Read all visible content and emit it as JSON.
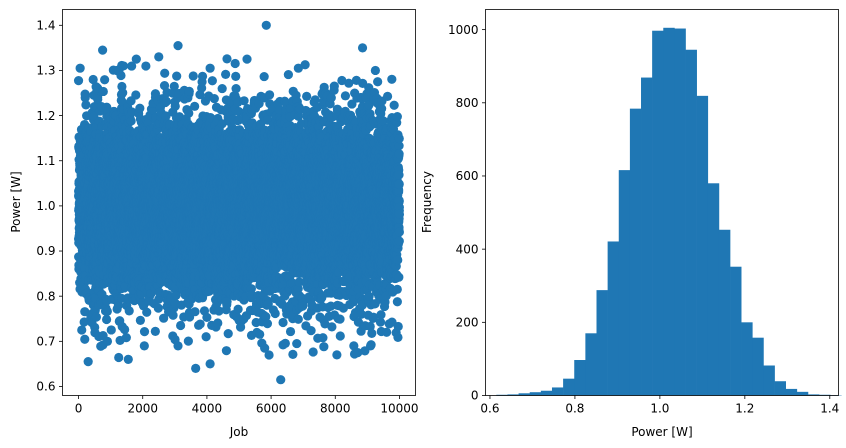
{
  "chart_data": [
    {
      "type": "scatter",
      "xlabel": "Job",
      "ylabel": "Power [W]",
      "xlim": [
        -500,
        10500
      ],
      "ylim": [
        0.58,
        1.435
      ],
      "xticks": [
        "0",
        "2000",
        "4000",
        "6000",
        "8000",
        "10000"
      ],
      "yticks": [
        "0.6",
        "0.7",
        "0.8",
        "0.9",
        "1.0",
        "1.1",
        "1.2",
        "1.3",
        "1.4"
      ],
      "grid": false,
      "color": "#1f77b4",
      "n_points": 10000,
      "distribution": {
        "mean": 1.0,
        "std": 0.1
      },
      "outliers": [
        {
          "x": 5850,
          "y": 1.4
        },
        {
          "x": 3100,
          "y": 1.355
        },
        {
          "x": 8850,
          "y": 1.35
        },
        {
          "x": 750,
          "y": 1.345
        },
        {
          "x": 5250,
          "y": 1.325
        },
        {
          "x": 1800,
          "y": 1.325
        },
        {
          "x": 2500,
          "y": 1.33
        },
        {
          "x": 50,
          "y": 1.305
        },
        {
          "x": 6850,
          "y": 1.305
        },
        {
          "x": 4100,
          "y": 1.305
        },
        {
          "x": 9250,
          "y": 1.3
        },
        {
          "x": 1400,
          "y": 1.31
        },
        {
          "x": 300,
          "y": 0.655
        },
        {
          "x": 1550,
          "y": 0.66
        },
        {
          "x": 6300,
          "y": 0.615
        },
        {
          "x": 3650,
          "y": 0.64
        },
        {
          "x": 4100,
          "y": 0.65
        },
        {
          "x": 8050,
          "y": 0.67
        },
        {
          "x": 8700,
          "y": 0.675
        },
        {
          "x": 8600,
          "y": 0.672
        },
        {
          "x": 3100,
          "y": 0.69
        },
        {
          "x": 5800,
          "y": 0.685
        },
        {
          "x": 9100,
          "y": 0.69
        },
        {
          "x": 2050,
          "y": 0.69
        },
        {
          "x": 100,
          "y": 0.725
        },
        {
          "x": 900,
          "y": 0.7
        },
        {
          "x": 9600,
          "y": 0.72
        },
        {
          "x": 6800,
          "y": 0.695
        }
      ]
    },
    {
      "type": "bar",
      "xlabel": "Power [W]",
      "ylabel": "Frequency",
      "xlim": [
        0.5895,
        1.4205
      ],
      "ylim": [
        0,
        1055
      ],
      "xticks": [
        "0.6",
        "0.8",
        "1.0",
        "1.2",
        "1.4"
      ],
      "yticks": [
        "0",
        "200",
        "400",
        "600",
        "800",
        "1000"
      ],
      "grid": false,
      "color": "#1f77b4",
      "bin_start": 0.615,
      "bin_width": 0.0262,
      "values": [
        2,
        3,
        6,
        9,
        13,
        22,
        46,
        97,
        170,
        288,
        421,
        616,
        784,
        869,
        997,
        1005,
        1003,
        945,
        819,
        580,
        453,
        352,
        200,
        158,
        82,
        39,
        18,
        10,
        3,
        2,
        1
      ]
    }
  ]
}
